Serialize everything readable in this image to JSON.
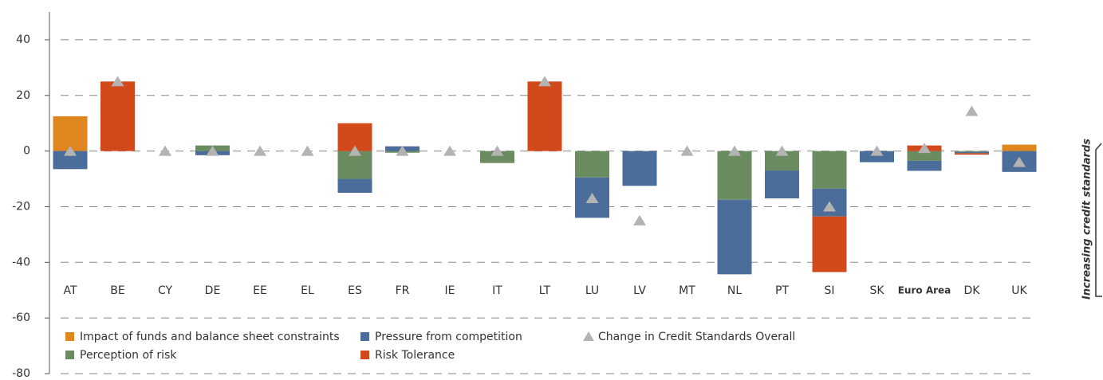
{
  "chart_data": {
    "type": "bar",
    "stacked": true,
    "categories": [
      "AT",
      "BE",
      "CY",
      "DE",
      "EE",
      "EL",
      "ES",
      "FR",
      "IE",
      "IT",
      "LT",
      "LU",
      "LV",
      "MT",
      "NL",
      "PT",
      "SI",
      "SK",
      "Euro Area",
      "DK",
      "UK"
    ],
    "highlight_category": 18,
    "series": [
      {
        "name": "Impact of funds and balance sheet constraints",
        "color": "#e0861f",
        "values": [
          12.5,
          0,
          0,
          0,
          0,
          0,
          0,
          0,
          0,
          0,
          0,
          0,
          0,
          0,
          0,
          0,
          0,
          0,
          0,
          0,
          2.3
        ]
      },
      {
        "name": "Perception of risk",
        "color": "#6b8b60",
        "values": [
          0,
          0,
          0,
          2,
          0,
          0,
          -10,
          -0.6,
          0,
          -4.3,
          0,
          -9.5,
          0,
          0,
          -17.5,
          -7,
          -13.5,
          0,
          -3.5,
          -0.3,
          0
        ]
      },
      {
        "name": "Pressure from competition",
        "color": "#4a6d99",
        "values": [
          -6.5,
          0,
          0,
          -1.5,
          0,
          0,
          -5,
          1.7,
          0,
          0,
          0,
          -14.5,
          -12.5,
          0,
          -26.8,
          -10,
          -10,
          -4,
          -3.6,
          -0.5,
          -7.5
        ]
      },
      {
        "name": "Risk Tolerance",
        "color": "#d24a1c",
        "values": [
          0,
          25,
          0,
          0,
          0,
          0,
          10,
          0,
          0,
          0,
          25,
          0,
          0,
          0,
          0,
          0,
          -20,
          0,
          2,
          -0.5,
          0
        ]
      },
      {
        "name": "Change in Credit Standards Overall",
        "color": "#b3b3b3",
        "marker": "triangle",
        "values": [
          0,
          25,
          0,
          0,
          0,
          0,
          0,
          0,
          0,
          0,
          25,
          -17,
          -25,
          0,
          0,
          0,
          -20,
          0,
          1,
          14.3,
          -4
        ]
      }
    ],
    "ylim": [
      -80,
      50
    ],
    "yticks": [
      -80,
      -60,
      -40,
      -20,
      0,
      20,
      40
    ],
    "grid": true,
    "annotation": "Increasing credit standards"
  }
}
